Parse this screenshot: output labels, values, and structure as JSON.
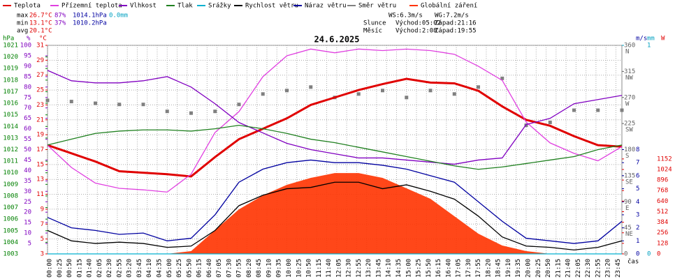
{
  "chart_data": {
    "type": "line",
    "title": "24.6.2025",
    "x_label": "čas",
    "grid": true,
    "stats": [
      [
        "max",
        "26.7°C",
        "87%",
        "1014.1hPa",
        "0.0mm"
      ],
      [
        "min",
        "13.1°C",
        "37%",
        "1010.2hPa"
      ],
      [
        "avg",
        "20.1°C"
      ]
    ],
    "info": [
      [
        "WS:6.3m/s",
        "WG:7.2m/s"
      ],
      [
        "Slunce",
        "Východ:05:02",
        "Západ:21:16"
      ],
      [
        "Měsíc",
        "Východ:2:08",
        "Západ:19:55"
      ]
    ],
    "xlim": [
      0,
      1440
    ],
    "xticks": [
      {
        "value": 0,
        "label": "00:00"
      },
      {
        "value": 25,
        "label": "00:25"
      },
      {
        "value": 50,
        "label": "00:50"
      },
      {
        "value": 75,
        "label": "01:15"
      },
      {
        "value": 100,
        "label": "01:40"
      },
      {
        "value": 125,
        "label": "02:05"
      },
      {
        "value": 150,
        "label": "02:30"
      },
      {
        "value": 175,
        "label": "02:55"
      },
      {
        "value": 200,
        "label": "03:20"
      },
      {
        "value": 225,
        "label": "03:45"
      },
      {
        "value": 250,
        "label": "04:10"
      },
      {
        "value": 275,
        "label": "04:35"
      },
      {
        "value": 300,
        "label": "05:00"
      },
      {
        "value": 325,
        "label": "05:25"
      },
      {
        "value": 350,
        "label": "05:50"
      },
      {
        "value": 375,
        "label": "06:15"
      },
      {
        "value": 400,
        "label": "06:40"
      },
      {
        "value": 425,
        "label": "07:05"
      },
      {
        "value": 450,
        "label": "07:30"
      },
      {
        "value": 475,
        "label": "07:55"
      },
      {
        "value": 500,
        "label": "08:20"
      },
      {
        "value": 525,
        "label": "08:45"
      },
      {
        "value": 550,
        "label": "09:10"
      },
      {
        "value": 575,
        "label": "09:35"
      },
      {
        "value": 600,
        "label": "10:00"
      },
      {
        "value": 625,
        "label": "10:25"
      },
      {
        "value": 650,
        "label": "10:50"
      },
      {
        "value": 675,
        "label": "11:15"
      },
      {
        "value": 700,
        "label": "11:40"
      },
      {
        "value": 725,
        "label": "12:05"
      },
      {
        "value": 750,
        "label": "12:30"
      },
      {
        "value": 775,
        "label": "12:55"
      },
      {
        "value": 800,
        "label": "13:20"
      },
      {
        "value": 825,
        "label": "13:45"
      },
      {
        "value": 850,
        "label": "14:10"
      },
      {
        "value": 875,
        "label": "14:35"
      },
      {
        "value": 900,
        "label": "15:00"
      },
      {
        "value": 925,
        "label": "15:25"
      },
      {
        "value": 950,
        "label": "15:50"
      },
      {
        "value": 975,
        "label": "16:15"
      },
      {
        "value": 1000,
        "label": "16:40"
      },
      {
        "value": 1025,
        "label": "17:05"
      },
      {
        "value": 1050,
        "label": "17:30"
      },
      {
        "value": 1075,
        "label": "17:55"
      },
      {
        "value": 1100,
        "label": "18:20"
      },
      {
        "value": 1125,
        "label": "18:45"
      },
      {
        "value": 1150,
        "label": "19:10"
      },
      {
        "value": 1175,
        "label": "19:35"
      },
      {
        "value": 1200,
        "label": "20:00"
      },
      {
        "value": 1225,
        "label": "20:25"
      },
      {
        "value": 1250,
        "label": "20:50"
      },
      {
        "value": 1275,
        "label": "21:15"
      },
      {
        "value": 1300,
        "label": "21:40"
      },
      {
        "value": 1325,
        "label": "22:05"
      },
      {
        "value": 1350,
        "label": "22:30"
      },
      {
        "value": 1375,
        "label": "22:55"
      },
      {
        "value": 1400,
        "label": "23:20"
      },
      {
        "value": 1425,
        "label": "23:45"
      }
    ],
    "axes": [
      {
        "unit": "hPa",
        "color": "#008000",
        "ylim": [
          1003,
          1021
        ],
        "yticks": [
          1003,
          1004,
          1005,
          1006,
          1007,
          1008,
          1009,
          1010,
          1011,
          1012,
          1013,
          1014,
          1015,
          1016,
          1017,
          1018,
          1019,
          1020,
          1021
        ]
      },
      {
        "unit": "%",
        "color": "#8000c0",
        "ylim": [
          0,
          100
        ],
        "yticks": [
          5,
          10,
          15,
          20,
          25,
          30,
          35,
          40,
          45,
          50,
          55,
          60,
          65,
          70,
          75,
          80,
          85,
          90,
          95,
          100
        ]
      },
      {
        "unit": "°C",
        "color": "#e00000",
        "ylim": [
          3,
          31
        ],
        "yticks": [
          3,
          5,
          7,
          9,
          11,
          13,
          15,
          17,
          19,
          21,
          23,
          25,
          27,
          29,
          31
        ]
      },
      {
        "color": "#606060",
        "ylim": [
          0,
          360
        ],
        "yticks": [
          0,
          45,
          90,
          135,
          180,
          225,
          270,
          315,
          360
        ],
        "compass": [
          {
            "value": 45,
            "label": "NE"
          },
          {
            "value": 90,
            "label": "E"
          },
          {
            "value": 135,
            "label": "SE"
          },
          {
            "value": 180,
            "label": "S"
          },
          {
            "value": 225,
            "label": "SW"
          },
          {
            "value": 270,
            "label": "W"
          },
          {
            "value": 315,
            "label": "NW"
          },
          {
            "value": 360,
            "label": "N"
          }
        ]
      },
      {
        "unit": "m/s",
        "color": "#0000a0",
        "ylim": [
          0,
          16
        ],
        "yticks": [
          0,
          1,
          2,
          3,
          4,
          5,
          6,
          7,
          8
        ]
      },
      {
        "unit": "mm",
        "color": "#00a0c0",
        "ylim": [
          0,
          1
        ],
        "yticks": [
          0,
          1
        ]
      },
      {
        "unit": "W",
        "color": "#e00000",
        "ylim": [
          0,
          2530
        ],
        "yticks": [
          0,
          128,
          256,
          384,
          512,
          640,
          768,
          896,
          1024,
          1152
        ]
      }
    ],
    "x": [
      0,
      60,
      120,
      180,
      240,
      300,
      360,
      420,
      480,
      540,
      600,
      660,
      720,
      780,
      840,
      900,
      960,
      1020,
      1080,
      1140,
      1200,
      1260,
      1320,
      1380,
      1440
    ],
    "series": [
      {
        "name": "Teplota",
        "color": "#e00000",
        "axis": 2,
        "kind": "line",
        "values": [
          17.6,
          16.5,
          15.4,
          14.1,
          13.9,
          13.7,
          13.4,
          16.0,
          18.4,
          19.8,
          21.2,
          23.0,
          24.0,
          25.0,
          25.8,
          26.5,
          26.0,
          25.9,
          24.9,
          22.8,
          21.0,
          20.2,
          18.8,
          17.6,
          17.4
        ]
      },
      {
        "name": "Přízemní teplota",
        "color": "#e040e0",
        "axis": 2,
        "kind": "line",
        "values": [
          17.6,
          14.6,
          12.5,
          11.8,
          11.6,
          11.3,
          13.7,
          19.3,
          22.1,
          26.8,
          29.6,
          30.5,
          30.0,
          30.5,
          30.3,
          30.5,
          30.3,
          29.8,
          28.2,
          26.3,
          20.7,
          17.9,
          16.5,
          15.5,
          17.4
        ]
      },
      {
        "name": "Vlhkost",
        "color": "#8000c0",
        "axis": 1,
        "kind": "line",
        "values": [
          88,
          83,
          82,
          82,
          83,
          85,
          80,
          72,
          63,
          58,
          53,
          50,
          48,
          46,
          46,
          45,
          44,
          43,
          45,
          46,
          62,
          65,
          72,
          74,
          76
        ]
      },
      {
        "name": "Tlak",
        "color": "#208020",
        "axis": 0,
        "kind": "line",
        "values": [
          1012.4,
          1012.9,
          1013.4,
          1013.6,
          1013.7,
          1013.7,
          1013.6,
          1013.8,
          1014.1,
          1013.8,
          1013.4,
          1012.9,
          1012.6,
          1012.2,
          1011.8,
          1011.4,
          1011.0,
          1010.6,
          1010.3,
          1010.5,
          1010.8,
          1011.1,
          1011.4,
          1012.0,
          1012.4
        ]
      },
      {
        "name": "Srážky",
        "color": "#00b0d0",
        "axis": 5,
        "kind": "line",
        "values": [
          0,
          0,
          0,
          0,
          0,
          0,
          0,
          0,
          0,
          0,
          0,
          0,
          0,
          0,
          0,
          0,
          0,
          0,
          0,
          0,
          0,
          0,
          0,
          0,
          0
        ]
      },
      {
        "name": "Rychlost větru",
        "color": "#000000",
        "axis": 4,
        "kind": "line",
        "values": [
          1.8,
          1.0,
          0.8,
          0.9,
          0.8,
          0.5,
          0.6,
          1.8,
          3.7,
          4.5,
          5.0,
          5.1,
          5.5,
          5.5,
          5.0,
          5.3,
          4.8,
          4.2,
          2.9,
          1.3,
          0.6,
          0.5,
          0.3,
          0.5,
          1.0
        ]
      },
      {
        "name": "Náraz větru",
        "color": "#0000a0",
        "axis": 4,
        "kind": "line",
        "values": [
          2.8,
          2.0,
          1.8,
          1.5,
          1.6,
          1.0,
          1.2,
          3.0,
          5.5,
          6.5,
          7.0,
          7.2,
          7.0,
          7.0,
          6.8,
          6.5,
          6.0,
          5.5,
          4.0,
          2.5,
          1.2,
          1.0,
          0.8,
          1.0,
          2.5
        ]
      },
      {
        "name": "Směr větru",
        "color": "#808080",
        "axis": 3,
        "kind": "scatter",
        "values": [
          265,
          263,
          260,
          258,
          258,
          246,
          243,
          246,
          258,
          276,
          282,
          288,
          270,
          276,
          282,
          270,
          282,
          276,
          288,
          303,
          222,
          227,
          248,
          248,
          248
        ]
      },
      {
        "name": "Globální záření",
        "color": "#ff3300",
        "axis": 6,
        "kind": "area",
        "values": [
          0,
          0,
          0,
          0,
          0,
          0,
          34,
          288,
          541,
          710,
          838,
          922,
          981,
          981,
          922,
          795,
          668,
          457,
          245,
          102,
          34,
          0,
          0,
          0,
          0
        ]
      }
    ]
  }
}
